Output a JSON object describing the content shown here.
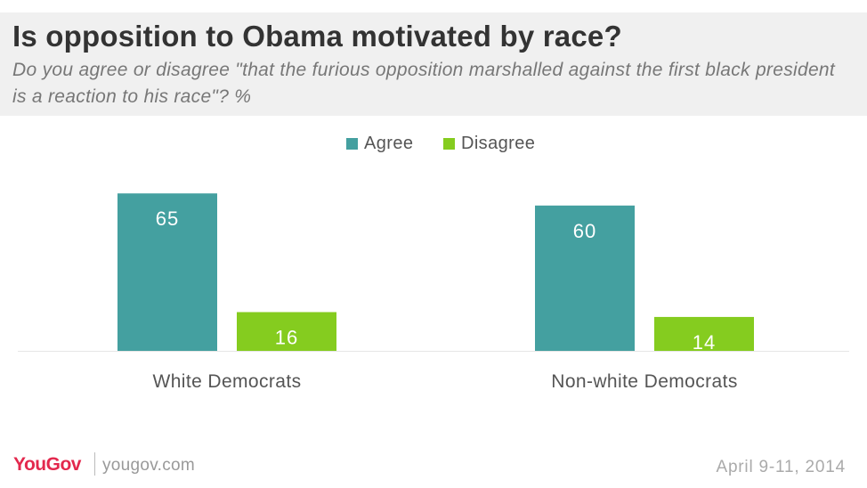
{
  "header": {
    "title": "Is opposition to Obama motivated by race?",
    "subtitle": "Do you agree or disagree \"that the furious opposition marshalled against the first black president is a reaction to his race\"? %"
  },
  "colors": {
    "agree": "#44a0a0",
    "disagree": "#85cc1f",
    "header_bg": "#f0f0f0",
    "brand": "#e3284d"
  },
  "chart_data": {
    "type": "bar",
    "categories": [
      "White Democrats",
      "Non-white Democrats"
    ],
    "series": [
      {
        "name": "Agree",
        "values": [
          65,
          60
        ]
      },
      {
        "name": "Disagree",
        "values": [
          16,
          14
        ]
      }
    ],
    "ylim": [
      0,
      70
    ],
    "legend_position": "top-center",
    "grid": false
  },
  "footer": {
    "logo_you": "You",
    "logo_gov": "Gov",
    "url": "yougov.com",
    "date": "April 9-11, 2014"
  }
}
